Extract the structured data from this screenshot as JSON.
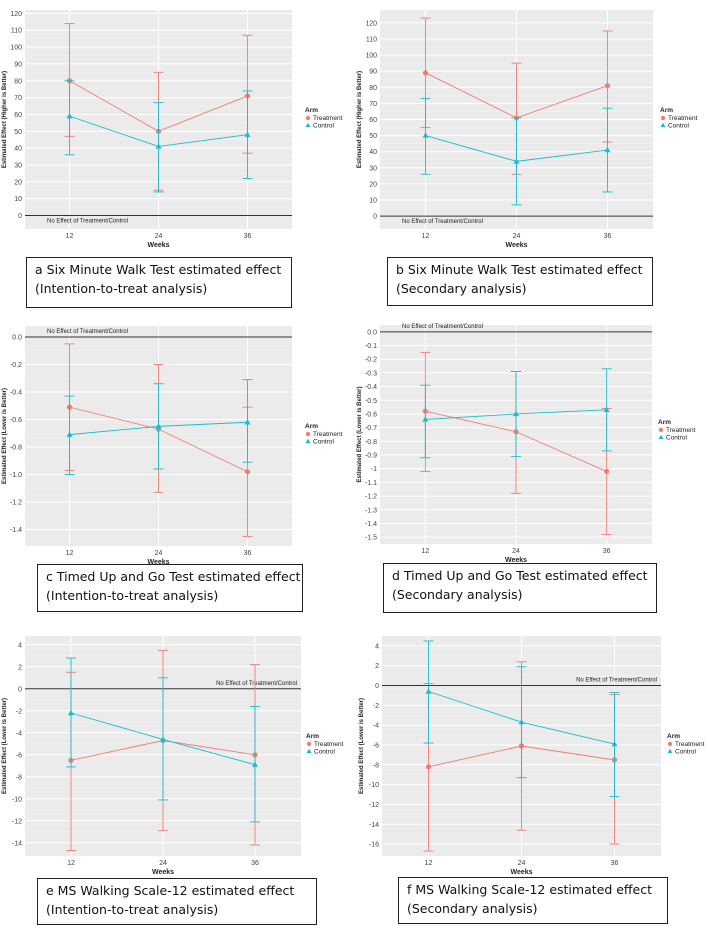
{
  "figure": {
    "legend_title": "Arm",
    "series_names": [
      "Treatment",
      "Control"
    ],
    "colors": {
      "treatment": "#f07c74",
      "control": "#17becf",
      "panel_bg": "#ebebeb",
      "grid": "#ffffff",
      "ref_line": "#333333"
    },
    "xlabel": "Weeks",
    "ref_label": "No Effect of Treatment/Control"
  },
  "chart_data": [
    {
      "type": "line",
      "panel": "a",
      "ylabel": "Estimated Effect (Higher is Better)",
      "x": [
        "12",
        "24",
        "36"
      ],
      "yticks": [
        "0",
        "10",
        "20",
        "30",
        "40",
        "50",
        "60",
        "70",
        "80",
        "90",
        "100",
        "110",
        "120"
      ],
      "ylim": [
        -8,
        122
      ],
      "series": [
        {
          "name": "Treatment",
          "values": [
            80,
            50,
            71
          ],
          "lower": [
            47,
            15,
            37
          ],
          "upper": [
            114,
            85,
            107
          ]
        },
        {
          "name": "Control",
          "values": [
            59,
            41,
            48
          ],
          "lower": [
            36,
            14,
            22
          ],
          "upper": [
            80,
            67,
            74
          ]
        }
      ],
      "caption": [
        "a Six Minute Walk Test estimated effect",
        "(Intention-to-treat analysis)"
      ]
    },
    {
      "type": "line",
      "panel": "b",
      "ylabel": "Estimated Effect (Higher is Better)",
      "x": [
        "12",
        "24",
        "36"
      ],
      "yticks": [
        "0",
        "10",
        "20",
        "30",
        "40",
        "50",
        "60",
        "70",
        "80",
        "90",
        "100",
        "110",
        "120"
      ],
      "ylim": [
        -8,
        128
      ],
      "series": [
        {
          "name": "Treatment",
          "values": [
            89,
            61,
            81
          ],
          "lower": [
            55,
            26,
            46
          ],
          "upper": [
            123,
            95,
            115
          ]
        },
        {
          "name": "Control",
          "values": [
            50,
            34,
            41
          ],
          "lower": [
            26,
            7,
            15
          ],
          "upper": [
            73,
            61,
            67
          ]
        }
      ],
      "caption": [
        "b Six Minute Walk Test estimated effect",
        "(Secondary analysis)"
      ]
    },
    {
      "type": "line",
      "panel": "c",
      "ylabel": "Estimated Effect (Lower is Better)",
      "x": [
        "12",
        "24",
        "36"
      ],
      "yticks": [
        "-1.4",
        "-1.2",
        "-1.0",
        "-0.8",
        "-0.6",
        "-0.4",
        "-0.2",
        "0.0"
      ],
      "ylim": [
        -1.52,
        0.08
      ],
      "series": [
        {
          "name": "Treatment",
          "values": [
            -0.51,
            -0.67,
            -0.98
          ],
          "lower": [
            -0.97,
            -1.13,
            -1.45
          ],
          "upper": [
            -0.05,
            -0.2,
            -0.51
          ]
        },
        {
          "name": "Control",
          "values": [
            -0.71,
            -0.65,
            -0.62
          ],
          "lower": [
            -1.0,
            -0.96,
            -0.91
          ],
          "upper": [
            -0.43,
            -0.34,
            -0.31
          ]
        }
      ],
      "caption": [
        "c Timed Up and Go Test estimated effect",
        "(Intention-to-treat analysis)"
      ]
    },
    {
      "type": "line",
      "panel": "d",
      "ylabel": "Estimated Effect (Lower is Better)",
      "x": [
        "12",
        "24",
        "36"
      ],
      "yticks": [
        "-1.5",
        "-1.4",
        "-1.3",
        "-1.2",
        "-1.1",
        "-1",
        "-0.9",
        "-0.8",
        "-0.7",
        "-0.6",
        "-0.5",
        "-0.4",
        "-0.3",
        "-0.2",
        "-0.1",
        "0.0"
      ],
      "ylim": [
        -1.55,
        0.05
      ],
      "series": [
        {
          "name": "Treatment",
          "values": [
            -0.58,
            -0.73,
            -1.02
          ],
          "lower": [
            -1.02,
            -1.18,
            -1.48
          ],
          "upper": [
            -0.15,
            -0.29,
            -0.56
          ]
        },
        {
          "name": "Control",
          "values": [
            -0.64,
            -0.6,
            -0.57
          ],
          "lower": [
            -0.92,
            -0.91,
            -0.87
          ],
          "upper": [
            -0.39,
            -0.29,
            -0.27
          ]
        }
      ],
      "caption": [
        "d Timed Up and Go Test estimated effect",
        "(Secondary analysis)"
      ]
    },
    {
      "type": "line",
      "panel": "e",
      "ylabel": "Estimated Effect (Lower is Better)",
      "x": [
        "12",
        "24",
        "36"
      ],
      "yticks": [
        "-14",
        "-12",
        "-10",
        "-8",
        "-6",
        "-4",
        "-2",
        "0",
        "2",
        "4"
      ],
      "ylim": [
        -15.2,
        4.8
      ],
      "series": [
        {
          "name": "Treatment",
          "values": [
            -6.5,
            -4.7,
            -6.0
          ],
          "lower": [
            -14.7,
            -12.9,
            -14.2
          ],
          "upper": [
            1.5,
            3.5,
            2.2
          ]
        },
        {
          "name": "Control",
          "values": [
            -2.2,
            -4.6,
            -6.9
          ],
          "lower": [
            -7.1,
            -10.1,
            -12.1
          ],
          "upper": [
            2.8,
            1.0,
            -1.6
          ]
        }
      ],
      "caption": [
        "e MS Walking Scale-12 estimated effect",
        "(Intention-to-treat analysis)"
      ]
    },
    {
      "type": "line",
      "panel": "f",
      "ylabel": "Estimated Effect (Lower is Better)",
      "x": [
        "12",
        "24",
        "36"
      ],
      "yticks": [
        "-16",
        "-14",
        "-12",
        "-10",
        "-8",
        "-6",
        "-4",
        "-2",
        "0",
        "2",
        "4"
      ],
      "ylim": [
        -17.2,
        5.0
      ],
      "series": [
        {
          "name": "Treatment",
          "values": [
            -8.2,
            -6.1,
            -7.5
          ],
          "lower": [
            -16.7,
            -14.6,
            -16.0
          ],
          "upper": [
            0.2,
            2.4,
            -0.9
          ]
        },
        {
          "name": "Control",
          "values": [
            -0.6,
            -3.7,
            -5.9
          ],
          "lower": [
            -5.8,
            -9.3,
            -11.2
          ],
          "upper": [
            4.5,
            1.9,
            -0.7
          ]
        }
      ],
      "caption": [
        "f MS Walking Scale-12 estimated effect",
        "(Secondary analysis)"
      ]
    }
  ]
}
